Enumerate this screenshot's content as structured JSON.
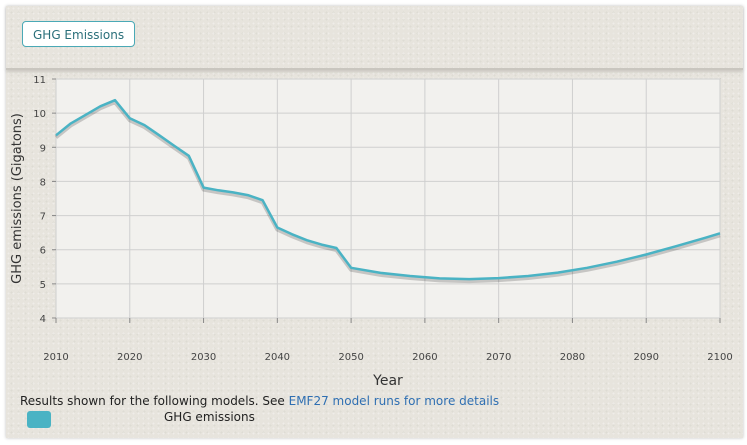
{
  "header": {
    "tab_label": "GHG Emissions"
  },
  "footer": {
    "text_prefix": "Results shown for the following models. See ",
    "link_text": "EMF27 model runs for more details"
  },
  "chart_data": {
    "type": "line",
    "xlabel": "Year",
    "ylabel": "GHG emissions (Gigatons)",
    "xlim": [
      2010,
      2100
    ],
    "ylim": [
      4,
      11
    ],
    "x_ticks": [
      2010,
      2020,
      2030,
      2040,
      2050,
      2060,
      2070,
      2080,
      2090,
      2100
    ],
    "y_ticks": [
      4,
      5,
      6,
      7,
      8,
      9,
      10,
      11
    ],
    "grid": true,
    "legend_position": "bottom-left",
    "series": [
      {
        "name": "GHG emissions",
        "color": "#4ab3c4",
        "x": [
          2010,
          2012,
          2014,
          2016,
          2018,
          2020,
          2022,
          2024,
          2026,
          2028,
          2030,
          2032,
          2034,
          2036,
          2038,
          2040,
          2042,
          2044,
          2046,
          2048,
          2050,
          2054,
          2058,
          2062,
          2066,
          2070,
          2074,
          2078,
          2082,
          2086,
          2090,
          2094,
          2098,
          2100
        ],
        "y": [
          9.35,
          9.7,
          9.95,
          10.2,
          10.38,
          9.85,
          9.65,
          9.35,
          9.05,
          8.75,
          7.82,
          7.74,
          7.68,
          7.6,
          7.45,
          6.65,
          6.45,
          6.28,
          6.15,
          6.05,
          5.47,
          5.32,
          5.23,
          5.16,
          5.14,
          5.17,
          5.23,
          5.33,
          5.47,
          5.65,
          5.86,
          6.1,
          6.35,
          6.48
        ]
      }
    ]
  }
}
